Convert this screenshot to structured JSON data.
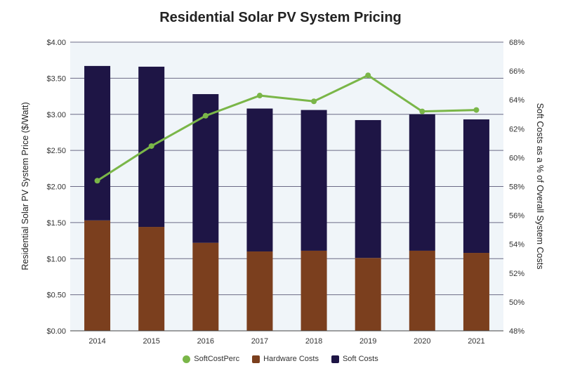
{
  "chart_data": {
    "type": "bar",
    "title": "Residential Solar PV System Pricing",
    "ylabel": "Residential Solar PV System Price ($/Watt)",
    "y2label": "Soft Costs as a % of Overall System Costs",
    "ylim": [
      0,
      4
    ],
    "y2lim": [
      48,
      68
    ],
    "yticks": [
      "$0.00",
      "$0.50",
      "$1.00",
      "$1.50",
      "$2.00",
      "$2.50",
      "$3.00",
      "$3.50",
      "$4.00"
    ],
    "y2ticks": [
      "48%",
      "50%",
      "52%",
      "54%",
      "56%",
      "58%",
      "60%",
      "62%",
      "64%",
      "66%",
      "68%"
    ],
    "categories": [
      "2014",
      "2015",
      "2016",
      "2017",
      "2018",
      "2019",
      "2020",
      "2021"
    ],
    "stacked": true,
    "grid": true,
    "legend_position": "bottom",
    "series": [
      {
        "name": "Hardware Costs",
        "type": "bar",
        "color": "#7b3f1e",
        "values": [
          1.53,
          1.44,
          1.22,
          1.1,
          1.11,
          1.01,
          1.11,
          1.08
        ]
      },
      {
        "name": "Soft Costs",
        "type": "bar",
        "color": "#1e1545",
        "values": [
          2.14,
          2.22,
          2.06,
          1.98,
          1.95,
          1.91,
          1.89,
          1.85
        ]
      },
      {
        "name": "SoftCostPerc",
        "type": "line",
        "axis": "right",
        "color": "#7ab648",
        "values": [
          58.4,
          60.8,
          62.9,
          64.3,
          63.9,
          65.7,
          63.2,
          63.3
        ]
      }
    ],
    "legend_order": [
      "SoftCostPerc",
      "Hardware Costs",
      "Soft Costs"
    ]
  }
}
